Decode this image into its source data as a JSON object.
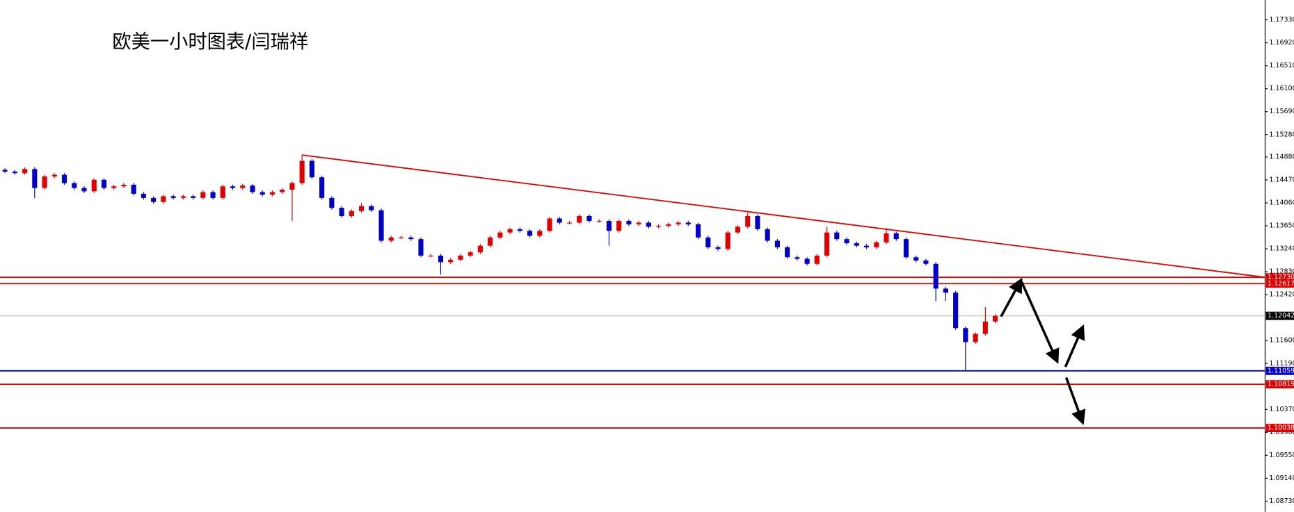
{
  "chart_data": {
    "type": "candlestick",
    "title": "欧美一小时图表/闫瑞祥",
    "up_color": "#e00000",
    "down_color": "#0000c8",
    "ylim": [
      1.08539,
      1.17683
    ],
    "yticks": [
      {
        "value": 1.1733,
        "label": "1.17330"
      },
      {
        "value": 1.1692,
        "label": "1.16920"
      },
      {
        "value": 1.1651,
        "label": "1.16510"
      },
      {
        "value": 1.161,
        "label": "1.16100"
      },
      {
        "value": 1.1569,
        "label": "1.15690"
      },
      {
        "value": 1.1528,
        "label": "1.15280"
      },
      {
        "value": 1.1488,
        "label": "1.14880"
      },
      {
        "value": 1.1447,
        "label": "1.14470"
      },
      {
        "value": 1.1406,
        "label": "1.14060"
      },
      {
        "value": 1.1365,
        "label": "1.13650"
      },
      {
        "value": 1.1324,
        "label": "1.13240"
      },
      {
        "value": 1.1283,
        "label": "1.12830"
      },
      {
        "value": 1.1242,
        "label": "1.12420"
      },
      {
        "value": 1.116,
        "label": "1.11600"
      },
      {
        "value": 1.1119,
        "label": "1.11190"
      },
      {
        "value": 1.1037,
        "label": "1.10370"
      },
      {
        "value": 1.0996,
        "label": "1.09960"
      },
      {
        "value": 1.0955,
        "label": "1.09550"
      },
      {
        "value": 1.0914,
        "label": "1.09140"
      },
      {
        "value": 1.0873,
        "label": "1.08730"
      }
    ],
    "open": [
      1.1465,
      1.1462,
      1.14591,
      1.14665,
      1.14326,
      1.14532,
      1.14562,
      1.14414,
      1.14326,
      1.14267,
      1.14473,
      1.14326,
      1.14355,
      1.14385,
      1.14223,
      1.14149,
      1.14076,
      1.14179,
      1.14149,
      1.14179,
      1.14149,
      1.14252,
      1.14149,
      1.14355,
      1.14326,
      1.1437,
      1.14252,
      1.14208,
      1.14252,
      1.14296,
      1.14414,
      1.14812,
      1.14517,
      1.14149,
      1.13972,
      1.13825,
      1.13914,
      1.14002,
      1.13928,
      1.13384,
      1.13442,
      1.13442,
      1.13413,
      1.13118,
      1.13118,
      1.13001,
      1.13045,
      1.13118,
      1.13177,
      1.13295,
      1.13442,
      1.13531,
      1.1359,
      1.1356,
      1.13472,
      1.1356,
      1.13781,
      1.13707,
      1.13707,
      1.13825,
      1.13737,
      1.13737,
      1.1356,
      1.13737,
      1.13678,
      1.13707,
      1.13634,
      1.13649,
      1.13678,
      1.13707,
      1.13678,
      1.13442,
      1.13266,
      1.13236,
      1.13531,
      1.13634,
      1.13825,
      1.1359,
      1.13384,
      1.13266,
      1.13089,
      1.1306,
      1.12971,
      1.13118,
      1.13531,
      1.13413,
      1.13339,
      1.13295,
      1.13266,
      1.13354,
      1.13516,
      1.13413,
      1.13089,
      1.1303,
      1.12971,
      1.12529,
      1.12456,
      1.11823,
      1.11572,
      1.11719,
      1.1194
    ],
    "high": [
      1.1468,
      1.1465,
      1.14695,
      1.14695,
      1.14562,
      1.14592,
      1.14592,
      1.14444,
      1.14356,
      1.14503,
      1.14503,
      1.14385,
      1.14415,
      1.14415,
      1.14253,
      1.14179,
      1.14209,
      1.14209,
      1.14209,
      1.14209,
      1.14282,
      1.14282,
      1.14385,
      1.14385,
      1.144,
      1.144,
      1.14282,
      1.14282,
      1.14326,
      1.14444,
      1.14915,
      1.14842,
      1.14547,
      1.14179,
      1.14002,
      1.13944,
      1.1406,
      1.14032,
      1.13958,
      1.13472,
      1.13472,
      1.13472,
      1.13443,
      1.13148,
      1.13148,
      1.13075,
      1.13148,
      1.13207,
      1.13325,
      1.13472,
      1.13561,
      1.1362,
      1.1362,
      1.1359,
      1.1359,
      1.13811,
      1.13811,
      1.13737,
      1.13855,
      1.13855,
      1.13767,
      1.13767,
      1.13767,
      1.13767,
      1.13737,
      1.13737,
      1.13679,
      1.13708,
      1.13737,
      1.13737,
      1.13708,
      1.13472,
      1.13296,
      1.13561,
      1.13664,
      1.13884,
      1.13855,
      1.1362,
      1.13414,
      1.13296,
      1.13119,
      1.1309,
      1.13148,
      1.13634,
      1.13561,
      1.13443,
      1.13369,
      1.13325,
      1.13384,
      1.1359,
      1.13546,
      1.13443,
      1.13119,
      1.1306,
      1.13001,
      1.12559,
      1.12486,
      1.11853,
      1.11749,
      1.122,
      1.12072
    ],
    "low": [
      1.1459,
      1.14561,
      1.14561,
      1.14149,
      1.14296,
      1.14502,
      1.14384,
      1.14296,
      1.14237,
      1.14237,
      1.14296,
      1.14296,
      1.14325,
      1.14193,
      1.14119,
      1.14046,
      1.14046,
      1.14119,
      1.14119,
      1.14119,
      1.14119,
      1.14119,
      1.14119,
      1.14296,
      1.14296,
      1.14222,
      1.14178,
      1.14178,
      1.14222,
      1.13737,
      1.14384,
      1.14487,
      1.14119,
      1.13942,
      1.13795,
      1.13795,
      1.13884,
      1.13898,
      1.13354,
      1.13354,
      1.13412,
      1.13383,
      1.13088,
      1.13088,
      1.1278,
      1.12971,
      1.13015,
      1.13088,
      1.13147,
      1.13265,
      1.13412,
      1.13501,
      1.1353,
      1.13442,
      1.13442,
      1.1353,
      1.13677,
      1.13677,
      1.13677,
      1.13707,
      1.13707,
      1.13295,
      1.1353,
      1.13648,
      1.13648,
      1.13604,
      1.13604,
      1.13619,
      1.13648,
      1.13648,
      1.13412,
      1.13236,
      1.13206,
      1.13206,
      1.13501,
      1.13604,
      1.1356,
      1.13354,
      1.13236,
      1.13059,
      1.1303,
      1.12941,
      1.12941,
      1.13088,
      1.13383,
      1.13309,
      1.13265,
      1.13236,
      1.13236,
      1.13324,
      1.13383,
      1.13059,
      1.13,
      1.12941,
      1.12309,
      1.12309,
      1.11793,
      1.11059,
      1.11542,
      1.11689,
      1.1191
    ],
    "close": [
      1.1462,
      1.14591,
      1.14665,
      1.14326,
      1.14532,
      1.14562,
      1.14414,
      1.14326,
      1.14267,
      1.14473,
      1.14326,
      1.14355,
      1.14385,
      1.14223,
      1.14149,
      1.14076,
      1.14179,
      1.14149,
      1.14179,
      1.14149,
      1.14252,
      1.14149,
      1.14355,
      1.14326,
      1.1437,
      1.14252,
      1.14208,
      1.14252,
      1.14296,
      1.14414,
      1.14812,
      1.14517,
      1.14149,
      1.13972,
      1.13825,
      1.13914,
      1.14002,
      1.13928,
      1.13384,
      1.13442,
      1.13442,
      1.13413,
      1.13118,
      1.13118,
      1.13001,
      1.13045,
      1.13118,
      1.13177,
      1.13295,
      1.13442,
      1.13531,
      1.1359,
      1.1356,
      1.13472,
      1.1356,
      1.13781,
      1.13707,
      1.13707,
      1.13825,
      1.13737,
      1.13737,
      1.1356,
      1.13737,
      1.13678,
      1.13707,
      1.13634,
      1.13649,
      1.13678,
      1.13707,
      1.13678,
      1.13442,
      1.13266,
      1.13236,
      1.13531,
      1.13634,
      1.13825,
      1.1359,
      1.13384,
      1.13266,
      1.13089,
      1.1306,
      1.12971,
      1.13118,
      1.13531,
      1.13413,
      1.13339,
      1.13295,
      1.13266,
      1.13354,
      1.13516,
      1.13413,
      1.13089,
      1.1303,
      1.12971,
      1.12529,
      1.12456,
      1.11823,
      1.11572,
      1.11719,
      1.1194,
      1.12042
    ],
    "levels": [
      {
        "value": 1.1273,
        "label": "1.12730",
        "color": "#e00000"
      },
      {
        "value": 1.12617,
        "label": "1.12617",
        "color": "#e00000"
      },
      {
        "value": 1.11059,
        "label": "1.11059",
        "color": "#0000c8"
      },
      {
        "value": 1.10819,
        "label": "1.10819",
        "color": "#e00000"
      },
      {
        "value": 1.10038,
        "label": "1.10038",
        "color": "#e00000"
      }
    ],
    "current": {
      "value": 1.12042,
      "label": "1.12042",
      "color": "#c0c0c0"
    },
    "trendline": {
      "start": 1.14915,
      "end": 1.1273,
      "color": "#e00000"
    }
  }
}
